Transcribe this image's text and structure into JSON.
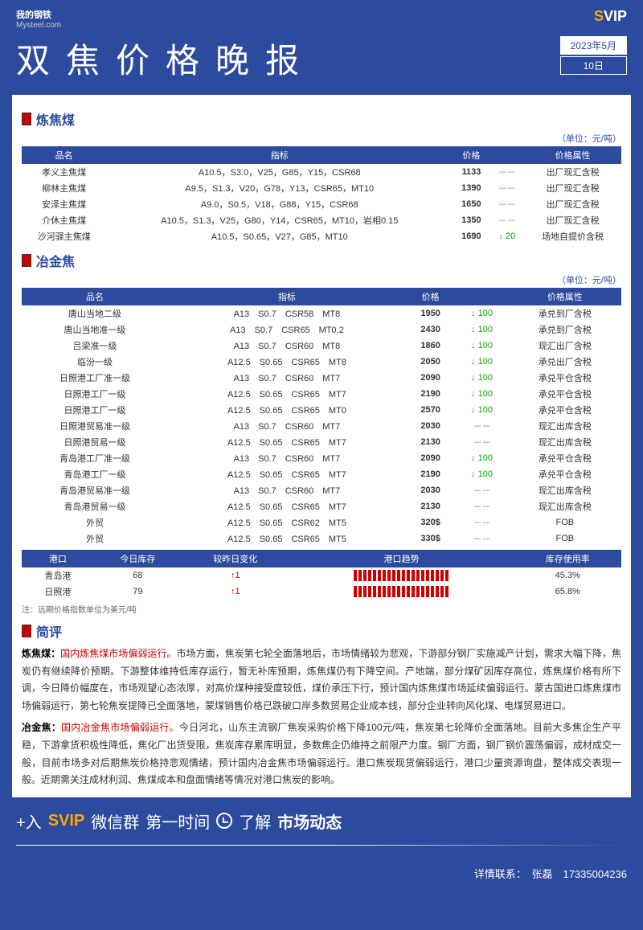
{
  "header": {
    "logo1": "我的钢铁",
    "logo2": "Mysteel.com",
    "svip_s": "S",
    "svip_vip": "VIP",
    "title": "双焦价格晚报",
    "date_ym": "2023年5月",
    "date_d": "10日"
  },
  "sec1": {
    "name": "炼焦煤",
    "unit": "（单位：元/吨）",
    "cols": [
      "品名",
      "指标",
      "价格",
      "",
      "价格属性"
    ],
    "rows": [
      [
        "孝义主焦煤",
        "A10.5，S3.0，V25，G85，Y15，CSR68",
        "1133",
        "－－",
        "出厂现汇含税"
      ],
      [
        "柳林主焦煤",
        "A9.5，S1.3，V20，G78，Y13，CSR65，MT10",
        "1390",
        "－－",
        "出厂现汇含税"
      ],
      [
        "安泽主焦煤",
        "A9.0，S0.5，V18，G88，Y15，CSR68",
        "1650",
        "－－",
        "出厂现汇含税"
      ],
      [
        "介休主焦煤",
        "A10.5，S1.3，V25，G80，Y14，CSR65，MT10，岩相0.15",
        "1350",
        "－－",
        "出厂现汇含税"
      ],
      [
        "沙河驿主焦煤",
        "A10.5，S0.65，V27，G85，MT10",
        "1690",
        "↓ 20",
        "场地自提价含税"
      ]
    ]
  },
  "sec2": {
    "name": "冶金焦",
    "unit": "（单位：元/吨）",
    "cols": [
      "品名",
      "指标",
      "价格",
      "",
      "价格属性"
    ],
    "rows": [
      [
        "唐山当地二级",
        "A13　S0.7　CSR58　MT8",
        "1950",
        "↓ 100",
        "承兑到厂含税"
      ],
      [
        "唐山当地准一级",
        "A13　S0.7　CSR65　MT0.2",
        "2430",
        "↓ 100",
        "承兑到厂含税"
      ],
      [
        "吕梁准一级",
        "A13　S0.7　CSR60　MT8",
        "1860",
        "↓ 100",
        "现汇出厂含税"
      ],
      [
        "临汾一级",
        "A12.5　S0.65　CSR65　MT8",
        "2050",
        "↓ 100",
        "承兑出厂含税"
      ],
      [
        "日照港工厂准一级",
        "A13　S0.7　CSR60　MT7",
        "2090",
        "↓ 100",
        "承兑平仓含税"
      ],
      [
        "日照港工厂一级",
        "A12.5　S0.65　CSR65　MT7",
        "2190",
        "↓ 100",
        "承兑平仓含税"
      ],
      [
        "日照港工厂一级",
        "A12.5　S0.65　CSR65　MT0",
        "2570",
        "↓ 100",
        "承兑平仓含税"
      ],
      [
        "日照港贸易准一级",
        "A13　S0.7　CSR60　MT7",
        "2030",
        "－－",
        "现汇出库含税"
      ],
      [
        "日照港贸易一级",
        "A12.5　S0.65　CSR65　MT7",
        "2130",
        "－－",
        "现汇出库含税"
      ],
      [
        "青岛港工厂准一级",
        "A13　S0.7　CSR60　MT7",
        "2090",
        "↓ 100",
        "承兑平仓含税"
      ],
      [
        "青岛港工厂一级",
        "A12.5　S0.65　CSR65　MT7",
        "2190",
        "↓ 100",
        "承兑平仓含税"
      ],
      [
        "青岛港贸易准一级",
        "A13　S0.7　CSR60　MT7",
        "2030",
        "－－",
        "现汇出库含税"
      ],
      [
        "青岛港贸易一级",
        "A12.5　S0.65　CSR65　MT7",
        "2130",
        "－－",
        "现汇出库含税"
      ],
      [
        "外贸",
        "A12.5　S0.65　CSR62　MT5",
        "320$",
        "－－",
        "FOB"
      ],
      [
        "外贸",
        "A12.5　S0.65　CSR65　MT5",
        "330$",
        "－－",
        "FOB"
      ]
    ]
  },
  "port": {
    "cols": [
      "港口",
      "今日库存",
      "较昨日变化",
      "港口趋势",
      "库存使用率"
    ],
    "rows": [
      [
        "青岛港",
        "68",
        "↑1",
        "",
        "45.3%"
      ],
      [
        "日照港",
        "79",
        "↑1",
        "",
        "65.8%"
      ]
    ],
    "note": "注：远期价格指数单位为美元/吨"
  },
  "review": {
    "name": "简评",
    "p1_b": "炼焦煤：",
    "p1_hl": "国内炼焦煤市场偏弱运行。",
    "p1": "市场方面，焦炭第七轮全面落地后，市场情绪较为悲观，下游部分钢厂实施减产计划，需求大幅下降，焦炭仍有继续降价预期。下游整体维持低库存运行，暂无补库预期，炼焦煤仍有下降空间。产地端，部分煤矿因库存高位，炼焦煤价格有所下调，今日降价幅度在，市场观望心态浓厚，对高价煤种接受度较低，煤价承压下行，预计国内炼焦煤市场延续偏弱运行。蒙古国进口炼焦煤市场偏弱运行，第七轮焦炭提降已全面落地，蒙煤销售价格已跌破口岸多数贸易企业成本线，部分企业转向风化煤、电煤贸易进口。",
    "p2_b": "冶金焦：",
    "p2_hl": "国内冶金焦市场偏弱运行。",
    "p2": "今日河北，山东主流钢厂焦炭采购价格下降100元/吨，焦炭第七轮降价全面落地。目前大多焦企生产平稳，下游拿货积极性降低，焦化厂出货受限，焦炭库存累库明显，多数焦企仍维持之前限产力度。钢厂方面，钢厂钢价震荡偏弱，成材成交一般，目前市场多对后期焦炭价格持悲观情绪，预计国内冶金焦市场偏弱运行。港口焦炭现货偏弱运行，港口少量资源询盘，整体成交表现一般。近期需关注成材利润、焦煤成本和盘面情绪等情况对港口焦炭的影响。"
  },
  "footer": {
    "pre": "+入",
    "sv": "SVIP",
    "t1": "微信群",
    "t2": "第一时间",
    "t3": "了解",
    "t4": "市场动态",
    "contact_l": "详情联系：",
    "contact_n": "张磊",
    "contact_p": "17335004236"
  }
}
